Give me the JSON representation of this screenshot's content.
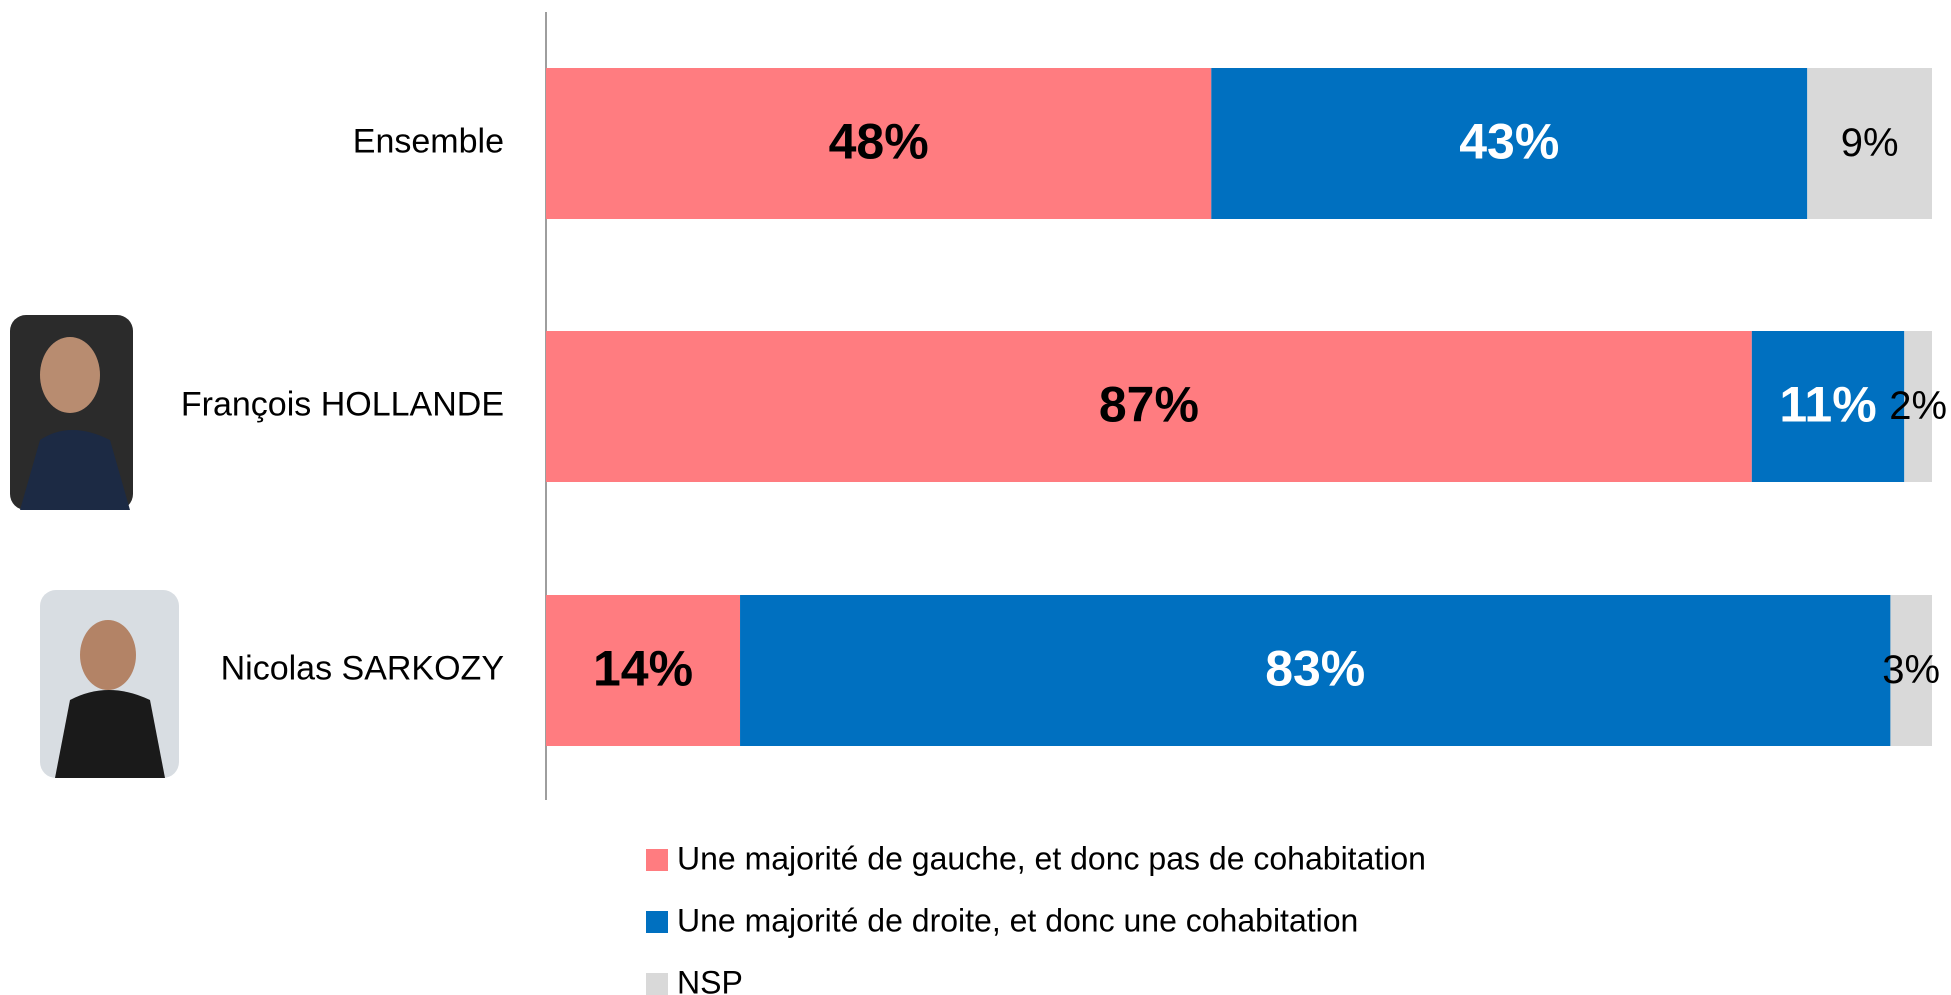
{
  "chart_data": {
    "type": "stacked-bar-horizontal",
    "categories": [
      "Ensemble",
      "François HOLLANDE",
      "Nicolas SARKOZY"
    ],
    "series": [
      {
        "name": "Une majorité de gauche, et donc pas de cohabitation",
        "color": "#ff7c80",
        "values": [
          48,
          87,
          14
        ],
        "value_labels": [
          "48%",
          "87%",
          "14%"
        ]
      },
      {
        "name": "Une majorité de droite, et donc une cohabitation",
        "color": "#0070c0",
        "values": [
          43,
          11,
          83
        ],
        "value_labels": [
          "43%",
          "11%",
          "83%"
        ]
      },
      {
        "name": "NSP",
        "color": "#d9d9d9",
        "values": [
          9,
          2,
          3
        ],
        "value_labels": [
          "9%",
          "2%",
          "3%"
        ]
      }
    ],
    "xlim": [
      0,
      100
    ],
    "legend": "bottom"
  }
}
